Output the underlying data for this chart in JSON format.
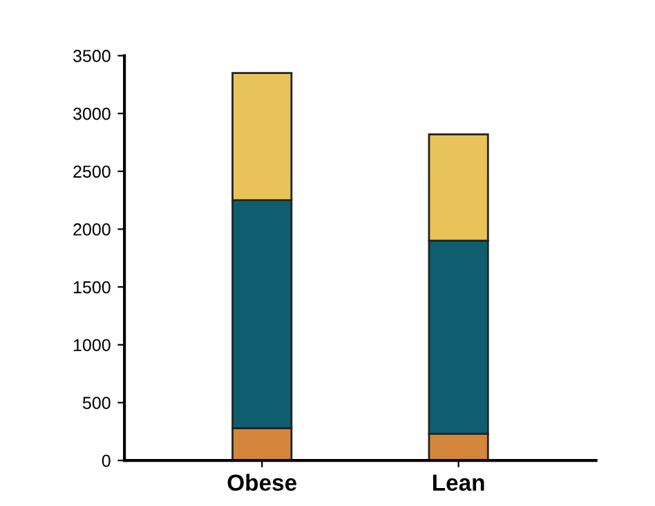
{
  "chart_data": {
    "type": "bar",
    "stacked": true,
    "categories": [
      "Obese",
      "Lean"
    ],
    "series": [
      {
        "color": "#d4873a",
        "values": [
          280,
          230
        ]
      },
      {
        "color": "#0e5e6f",
        "values": [
          1970,
          1670
        ]
      },
      {
        "color": "#e8c35a",
        "values": [
          1100,
          920
        ]
      }
    ],
    "ylim": [
      0,
      3500
    ],
    "yticks": [
      0,
      500,
      1000,
      1500,
      2000,
      2500,
      3000,
      3500
    ],
    "grid": false,
    "legend": false
  }
}
